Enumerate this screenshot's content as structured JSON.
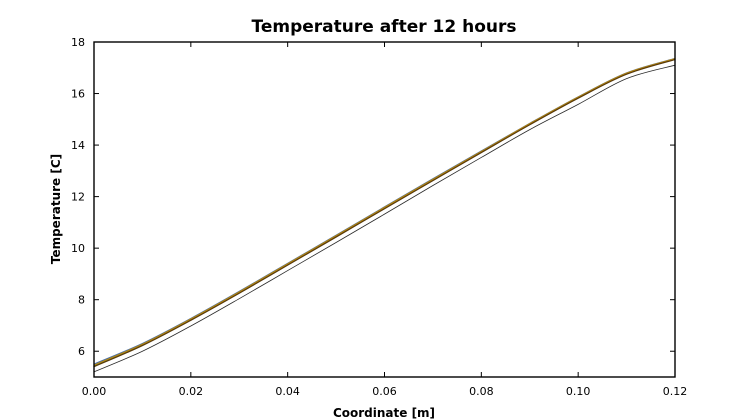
{
  "chart_data": {
    "type": "line",
    "title": "Temperature after 12 hours",
    "xlabel": "Coordinate [m]",
    "ylabel": "Temperature [C]",
    "xlim": [
      0.0,
      0.12
    ],
    "ylim": [
      5.0,
      18.0
    ],
    "x_ticks": [
      "0.00",
      "0.02",
      "0.04",
      "0.06",
      "0.08",
      "0.10",
      "0.12"
    ],
    "y_ticks": [
      "6",
      "8",
      "10",
      "12",
      "14",
      "16",
      "18"
    ],
    "grid": false,
    "legend": "none",
    "series": [
      {
        "color": "#2a2a2a",
        "x": [
          0.0,
          0.01,
          0.02,
          0.03,
          0.04,
          0.05,
          0.06,
          0.07,
          0.08,
          0.09,
          0.1,
          0.11,
          0.12
        ],
        "y": [
          5.2,
          6.0,
          6.98,
          8.04,
          9.13,
          10.22,
          11.32,
          12.43,
          13.52,
          14.6,
          15.58,
          16.58,
          17.1
        ]
      },
      {
        "color": "#4a6fa5",
        "x": [
          0.0,
          0.01,
          0.02,
          0.03,
          0.04,
          0.05,
          0.06,
          0.07,
          0.08,
          0.09,
          0.1,
          0.11,
          0.12
        ],
        "y": [
          5.5,
          6.3,
          7.27,
          8.32,
          9.41,
          10.5,
          11.6,
          12.69,
          13.77,
          14.84,
          15.87,
          16.8,
          17.36
        ]
      },
      {
        "color": "#3a5a2a",
        "x": [
          0.0,
          0.01,
          0.02,
          0.03,
          0.04,
          0.05,
          0.06,
          0.07,
          0.08,
          0.09,
          0.1,
          0.11,
          0.12
        ],
        "y": [
          5.42,
          6.24,
          7.22,
          8.27,
          9.36,
          10.45,
          11.55,
          12.64,
          13.72,
          14.8,
          15.83,
          16.76,
          17.33
        ]
      },
      {
        "color": "#b8860b",
        "x": [
          0.0,
          0.01,
          0.02,
          0.03,
          0.04,
          0.05,
          0.06,
          0.07,
          0.08,
          0.09,
          0.1,
          0.11,
          0.12
        ],
        "y": [
          5.46,
          6.27,
          7.25,
          8.3,
          9.39,
          10.48,
          11.58,
          12.67,
          13.75,
          14.83,
          15.86,
          16.79,
          17.35
        ]
      },
      {
        "color": "#5a3a0a",
        "x": [
          0.0,
          0.01,
          0.02,
          0.03,
          0.04,
          0.05,
          0.06,
          0.07,
          0.08,
          0.09,
          0.1,
          0.11,
          0.12
        ],
        "y": [
          5.4,
          6.22,
          7.2,
          8.25,
          9.34,
          10.43,
          11.53,
          12.62,
          13.71,
          14.79,
          15.82,
          16.75,
          17.32
        ]
      }
    ]
  }
}
